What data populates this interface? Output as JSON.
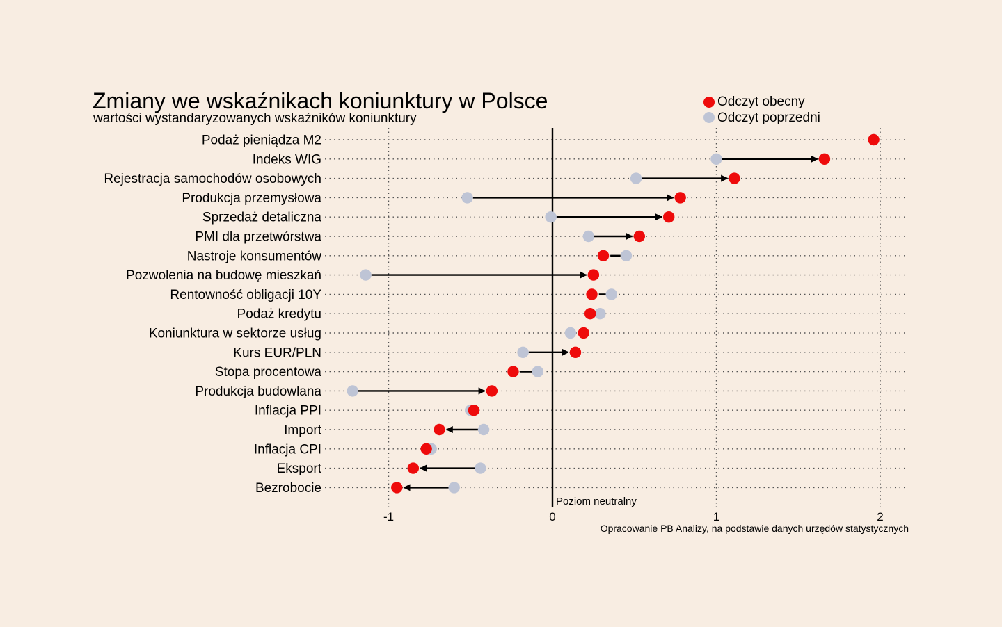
{
  "chart_data": {
    "type": "dot-arrow",
    "title": "Zmiany we wskaźnikach koniunktury w Polsce",
    "subtitle": "wartości wystandaryzowanych wskaźników koniunktury",
    "xlim": [
      -1.4,
      2.2
    ],
    "xticks": [
      -1,
      0,
      1,
      2
    ],
    "xtick_labels": [
      "-1",
      "0",
      "1",
      "2"
    ],
    "grid": true,
    "legend": {
      "position": "top-right",
      "current": {
        "label": "Odczyt obecny",
        "color": "#ee0b0b"
      },
      "previous": {
        "label": "Odczyt poprzedni",
        "color": "#bec4d5"
      }
    },
    "neutral_label": "Poziom neutralny",
    "source": "Opracowanie PB Analizy, na podstawie danych urzędów statystycznych",
    "series": [
      {
        "name": "Odczyt obecny",
        "key": "current"
      },
      {
        "name": "Odczyt poprzedni",
        "key": "previous"
      }
    ],
    "categories": [
      {
        "label": "Podaż pieniądza M2",
        "previous": 1.96,
        "current": 1.96
      },
      {
        "label": "Indeks WIG",
        "previous": 1.0,
        "current": 1.66
      },
      {
        "label": "Rejestracja samochodów osobowych",
        "previous": 0.51,
        "current": 1.11
      },
      {
        "label": "Produkcja przemysłowa",
        "previous": -0.52,
        "current": 0.78
      },
      {
        "label": "Sprzedaż detaliczna",
        "previous": -0.01,
        "current": 0.71
      },
      {
        "label": "PMI dla przetwórstwa",
        "previous": 0.22,
        "current": 0.53
      },
      {
        "label": "Nastroje konsumentów",
        "previous": 0.45,
        "current": 0.31
      },
      {
        "label": "Pozwolenia na budowę mieszkań",
        "previous": -1.14,
        "current": 0.25
      },
      {
        "label": "Rentowność obligacji 10Y",
        "previous": 0.36,
        "current": 0.24
      },
      {
        "label": "Podaż kredytu",
        "previous": 0.29,
        "current": 0.23
      },
      {
        "label": "Koniunktura w sektorze usług",
        "previous": 0.11,
        "current": 0.19
      },
      {
        "label": "Kurs EUR/PLN",
        "previous": -0.18,
        "current": 0.14
      },
      {
        "label": "Stopa procentowa",
        "previous": -0.09,
        "current": -0.24
      },
      {
        "label": "Produkcja budowlana",
        "previous": -1.22,
        "current": -0.37
      },
      {
        "label": "Inflacja PPI",
        "previous": -0.5,
        "current": -0.48
      },
      {
        "label": "Import",
        "previous": -0.42,
        "current": -0.69
      },
      {
        "label": "Inflacja CPI",
        "previous": -0.74,
        "current": -0.77
      },
      {
        "label": "Eksport",
        "previous": -0.44,
        "current": -0.85
      },
      {
        "label": "Bezrobocie",
        "previous": -0.6,
        "current": -0.95
      }
    ]
  }
}
